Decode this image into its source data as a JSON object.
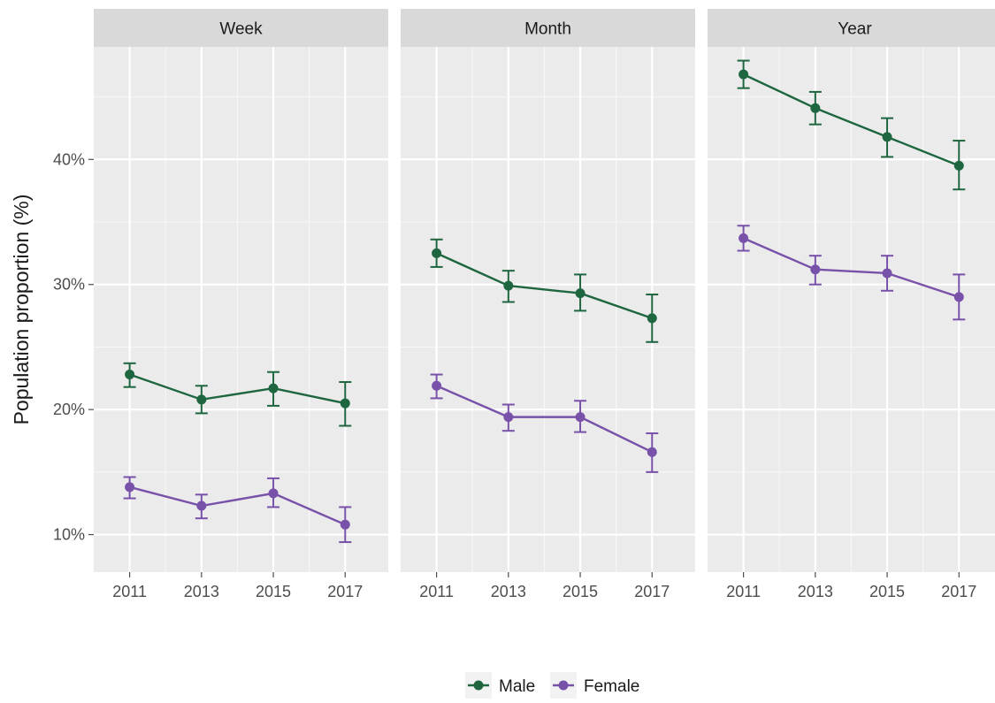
{
  "chart_data": {
    "type": "line",
    "ylabel": "Population proportion (%)",
    "y_tick_labels": [
      "10%",
      "20%",
      "30%",
      "40%"
    ],
    "y_ticks": [
      10,
      20,
      30,
      40
    ],
    "ylim": [
      7,
      49
    ],
    "x_tick_labels": [
      "2011",
      "2013",
      "2015",
      "2017"
    ],
    "x": [
      2011,
      2013,
      2015,
      2017
    ],
    "xlim": [
      2010,
      2018.2
    ],
    "grid": true,
    "legend_position": "bottom",
    "legend": [
      {
        "name": "Male",
        "color": "#1e6640"
      },
      {
        "name": "Female",
        "color": "#7851a9"
      }
    ],
    "facets": [
      {
        "label": "Week",
        "series": [
          {
            "name": "Male",
            "values": [
              22.8,
              20.8,
              21.7,
              20.5
            ],
            "lower": [
              21.8,
              19.7,
              20.3,
              18.7
            ],
            "upper": [
              23.7,
              21.9,
              23.0,
              22.2
            ]
          },
          {
            "name": "Female",
            "values": [
              13.8,
              12.3,
              13.3,
              10.8
            ],
            "lower": [
              12.9,
              11.3,
              12.2,
              9.4
            ],
            "upper": [
              14.6,
              13.2,
              14.5,
              12.2
            ]
          }
        ]
      },
      {
        "label": "Month",
        "series": [
          {
            "name": "Male",
            "values": [
              32.5,
              29.9,
              29.3,
              27.3
            ],
            "lower": [
              31.4,
              28.6,
              27.9,
              25.4
            ],
            "upper": [
              33.6,
              31.1,
              30.8,
              29.2
            ]
          },
          {
            "name": "Female",
            "values": [
              21.9,
              19.4,
              19.4,
              16.6
            ],
            "lower": [
              20.9,
              18.3,
              18.2,
              15.0
            ],
            "upper": [
              22.8,
              20.4,
              20.7,
              18.1
            ]
          }
        ]
      },
      {
        "label": "Year",
        "series": [
          {
            "name": "Male",
            "values": [
              46.8,
              44.1,
              41.8,
              39.5
            ],
            "lower": [
              45.7,
              42.8,
              40.2,
              37.6
            ],
            "upper": [
              47.9,
              45.4,
              43.3,
              41.5
            ]
          },
          {
            "name": "Female",
            "values": [
              33.7,
              31.2,
              30.9,
              29.0
            ],
            "lower": [
              32.7,
              30.0,
              29.5,
              27.2
            ],
            "upper": [
              34.7,
              32.3,
              32.3,
              30.8
            ]
          }
        ]
      }
    ]
  }
}
